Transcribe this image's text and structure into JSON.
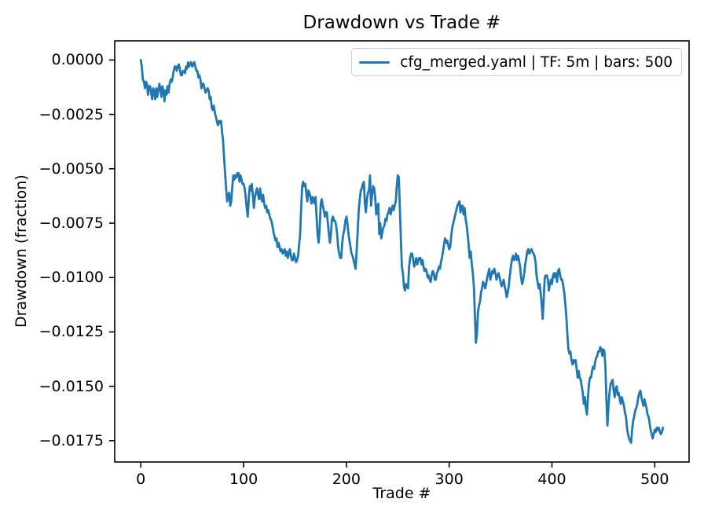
{
  "chart_data": {
    "type": "line",
    "title": "Drawdown vs Trade #",
    "xlabel": "Trade #",
    "ylabel": "Drawdown (fraction)",
    "grid": false,
    "legend_position": "upper right",
    "xlim": [
      -25.4,
      533.4
    ],
    "ylim": [
      -0.01848,
      0.00088
    ],
    "xticks": {
      "values": [
        0,
        100,
        200,
        300,
        400,
        500
      ],
      "labels": [
        "0",
        "100",
        "200",
        "300",
        "400",
        "500"
      ]
    },
    "yticks": {
      "values": [
        0.0,
        -0.0025,
        -0.005,
        -0.0075,
        -0.01,
        -0.0125,
        -0.015,
        -0.0175
      ],
      "labels": [
        "0.0000",
        "−0.0025",
        "−0.0050",
        "−0.0075",
        "−0.0100",
        "−0.0125",
        "−0.0150",
        "−0.0175"
      ]
    },
    "series": [
      {
        "name": "cfg_merged.yaml | TF: 5m | bars: 500",
        "color": "#1f77b4",
        "x_start": 0,
        "x_step": 1,
        "values_unit": 0.0001,
        "values": [
          0,
          -3,
          -9,
          -10,
          -13,
          -10,
          -11,
          -16,
          -12,
          -12,
          -15,
          -18,
          -13,
          -14,
          -18,
          -13,
          -17,
          -14,
          -11,
          -13,
          -17,
          -12,
          -14,
          -19,
          -14,
          -16,
          -12,
          -15,
          -11,
          -9,
          -10,
          -8,
          -5,
          -3,
          -3,
          -5,
          -3,
          -2,
          -4,
          -7,
          -7,
          -5,
          -5,
          -6,
          -3,
          -4,
          -1,
          -3,
          -2,
          -1,
          -3,
          -2,
          -1,
          -3,
          -5,
          -5,
          -8,
          -7,
          -9,
          -13,
          -11,
          -11,
          -13,
          -15,
          -14,
          -13,
          -14,
          -18,
          -17,
          -22,
          -23,
          -21,
          -24,
          -26,
          -28,
          -30,
          -28,
          -29,
          -28,
          -33,
          -37,
          -45,
          -52,
          -59,
          -65,
          -62,
          -61,
          -67,
          -65,
          -58,
          -53,
          -55,
          -53,
          -54,
          -52,
          -52,
          -56,
          -53,
          -55,
          -57,
          -57,
          -59,
          -63,
          -68,
          -72,
          -64,
          -58,
          -60,
          -57,
          -62,
          -68,
          -63,
          -61,
          -59,
          -62,
          -64,
          -59,
          -63,
          -65,
          -62,
          -66,
          -68,
          -67,
          -70,
          -69,
          -71,
          -73,
          -74,
          -76,
          -79,
          -81,
          -83,
          -82,
          -86,
          -84,
          -86,
          -88,
          -87,
          -89,
          -88,
          -87,
          -90,
          -88,
          -91,
          -89,
          -87,
          -90,
          -92,
          -92,
          -89,
          -91,
          -93,
          -92,
          -90,
          -85,
          -80,
          -68,
          -58,
          -56,
          -58,
          -57,
          -61,
          -65,
          -60,
          -61,
          -63,
          -66,
          -63,
          -64,
          -66,
          -63,
          -72,
          -80,
          -84,
          -78,
          -66,
          -64,
          -67,
          -69,
          -72,
          -70,
          -70,
          -75,
          -80,
          -84,
          -80,
          -73,
          -72,
          -74,
          -74,
          -76,
          -80,
          -86,
          -89,
          -91,
          -91,
          -84,
          -80,
          -78,
          -74,
          -72,
          -75,
          -80,
          -83,
          -86,
          -89,
          -90,
          -92,
          -94,
          -96,
          -88,
          -79,
          -69,
          -64,
          -60,
          -59,
          -57,
          -56,
          -66,
          -70,
          -64,
          -61,
          -60,
          -53,
          -67,
          -62,
          -58,
          -59,
          -63,
          -71,
          -68,
          -66,
          -80,
          -75,
          -82,
          -79,
          -77,
          -76,
          -73,
          -74,
          -71,
          -70,
          -68,
          -71,
          -69,
          -67,
          -69,
          -67,
          -65,
          -58,
          -53,
          -54,
          -68,
          -82,
          -95,
          -98,
          -104,
          -106,
          -103,
          -104,
          -105,
          -95,
          -91,
          -89,
          -89,
          -92,
          -95,
          -93,
          -91,
          -94,
          -92,
          -91,
          -91,
          -94,
          -92,
          -95,
          -97,
          -96,
          -97,
          -100,
          -99,
          -101,
          -102,
          -99,
          -97,
          -98,
          -101,
          -101,
          -98,
          -97,
          -95,
          -96,
          -93,
          -91,
          -88,
          -85,
          -82,
          -84,
          -83,
          -85,
          -87,
          -86,
          -81,
          -77,
          -75,
          -73,
          -71,
          -69,
          -67,
          -66,
          -65,
          -70,
          -67,
          -67,
          -71,
          -68,
          -73,
          -76,
          -80,
          -85,
          -91,
          -88,
          -94,
          -98,
          -104,
          -117,
          -130,
          -126,
          -116,
          -113,
          -111,
          -107,
          -105,
          -102,
          -103,
          -105,
          -103,
          -100,
          -98,
          -96,
          -101,
          -99,
          -97,
          -98,
          -96,
          -98,
          -101,
          -99,
          -98,
          -100,
          -102,
          -104,
          -103,
          -101,
          -104,
          -106,
          -109,
          -107,
          -104,
          -99,
          -95,
          -92,
          -90,
          -92,
          -91,
          -89,
          -92,
          -90,
          -92,
          -95,
          -100,
          -103,
          -101,
          -98,
          -94,
          -91,
          -88,
          -87,
          -89,
          -88,
          -87,
          -88,
          -89,
          -90,
          -93,
          -99,
          -102,
          -105,
          -103,
          -107,
          -112,
          -119,
          -110,
          -100,
          -99,
          -99,
          -101,
          -106,
          -103,
          -101,
          -103,
          -99,
          -98,
          -100,
          -98,
          -102,
          -97,
          -96,
          -99,
          -101,
          -101,
          -104,
          -107,
          -112,
          -118,
          -126,
          -133,
          -135,
          -134,
          -138,
          -140,
          -138,
          -139,
          -138,
          -142,
          -146,
          -143,
          -146,
          -147,
          -150,
          -153,
          -158,
          -155,
          -160,
          -163,
          -155,
          -149,
          -146,
          -146,
          -143,
          -141,
          -142,
          -139,
          -137,
          -136,
          -134,
          -134,
          -132,
          -133,
          -136,
          -133,
          -134,
          -141,
          -156,
          -168,
          -159,
          -153,
          -149,
          -148,
          -147,
          -152,
          -155,
          -151,
          -150,
          -154,
          -153,
          -156,
          -158,
          -155,
          -157,
          -159,
          -162,
          -164,
          -169,
          -172,
          -174,
          -175,
          -176,
          -170,
          -166,
          -164,
          -161,
          -160,
          -158,
          -155,
          -153,
          -152,
          -155,
          -157,
          -159,
          -156,
          -158,
          -160,
          -163,
          -164,
          -167,
          -170,
          -172,
          -174,
          -172,
          -170,
          -171,
          -169,
          -170,
          -169,
          -171,
          -172,
          -171,
          -169
        ]
      }
    ]
  }
}
